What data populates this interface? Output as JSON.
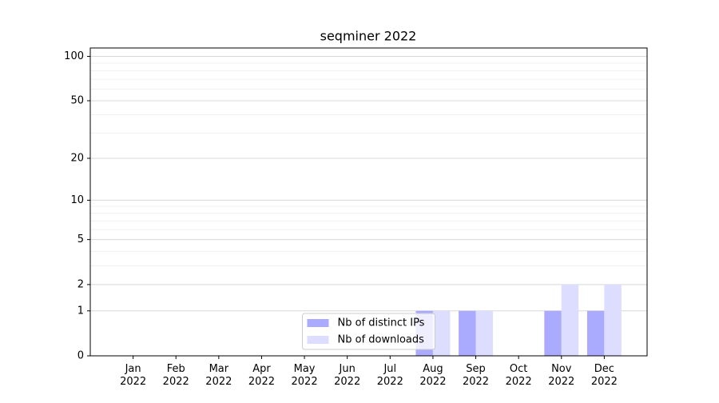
{
  "chart_data": {
    "type": "bar",
    "title": "seqminer 2022",
    "categories": [
      "Jan 2022",
      "Feb 2022",
      "Mar 2022",
      "Apr 2022",
      "May 2022",
      "Jun 2022",
      "Jul 2022",
      "Aug 2022",
      "Sep 2022",
      "Oct 2022",
      "Nov 2022",
      "Dec 2022"
    ],
    "series": [
      {
        "name": "Nb of distinct IPs",
        "color": "#aaaaff",
        "values": [
          0,
          0,
          0,
          0,
          0,
          0,
          0,
          1,
          1,
          0,
          1,
          1
        ]
      },
      {
        "name": "Nb of downloads",
        "color": "#ddddff",
        "values": [
          0,
          0,
          0,
          0,
          0,
          0,
          0,
          1,
          1,
          0,
          2,
          2
        ]
      }
    ],
    "yscale": "log1p",
    "ylim": [
      0,
      114
    ],
    "yticks": [
      0,
      1,
      2,
      5,
      10,
      20,
      50,
      100
    ],
    "minor_yticks": [
      3,
      4,
      6,
      7,
      8,
      9,
      30,
      40,
      60,
      70,
      80,
      90
    ],
    "grid": true,
    "legend": "lower center"
  }
}
